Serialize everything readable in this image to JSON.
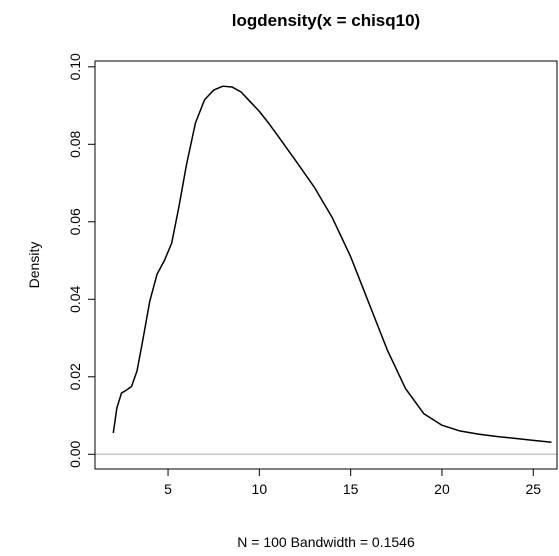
{
  "chart_data": {
    "type": "line",
    "title": "logdensity(x = chisq10)",
    "xlabel": "N = 100   Bandwidth = 0.1546",
    "ylabel": "Density",
    "xlim": [
      1.0,
      26.3
    ],
    "ylim": [
      -0.0038,
      0.1015
    ],
    "x_ticks": [
      5,
      10,
      15,
      20,
      25
    ],
    "x_tick_labels": [
      "5",
      "10",
      "15",
      "20",
      "25"
    ],
    "y_ticks": [
      0.0,
      0.02,
      0.04,
      0.06,
      0.08,
      0.1
    ],
    "y_tick_labels": [
      "0.00",
      "0.02",
      "0.04",
      "0.06",
      "0.08",
      "0.10"
    ],
    "zero_line_color": "#bebebe",
    "line_color": "#000000",
    "grid": false,
    "series": [
      {
        "x": [
          2.0,
          2.2,
          2.45,
          2.7,
          3.0,
          3.3,
          3.6,
          4.0,
          4.4,
          4.8,
          5.2,
          5.6,
          6.0,
          6.5,
          7.0,
          7.5,
          8.0,
          8.5,
          9.0,
          9.5,
          10.0,
          10.5,
          11.0,
          11.5,
          12.0,
          13.0,
          14.0,
          15.0,
          16.0,
          17.0,
          18.0,
          19.0,
          20.0,
          21.0,
          22.0,
          23.0,
          24.0,
          25.0,
          26.0
        ],
        "y": [
          0.0055,
          0.012,
          0.0158,
          0.0165,
          0.0175,
          0.0215,
          0.029,
          0.0395,
          0.0465,
          0.05,
          0.0545,
          0.064,
          0.0745,
          0.0855,
          0.0915,
          0.094,
          0.095,
          0.0948,
          0.0935,
          0.091,
          0.0885,
          0.0855,
          0.0823,
          0.079,
          0.0757,
          0.069,
          0.061,
          0.051,
          0.039,
          0.027,
          0.017,
          0.0105,
          0.0075,
          0.006,
          0.0052,
          0.0046,
          0.0041,
          0.0036,
          0.0031
        ]
      }
    ]
  }
}
